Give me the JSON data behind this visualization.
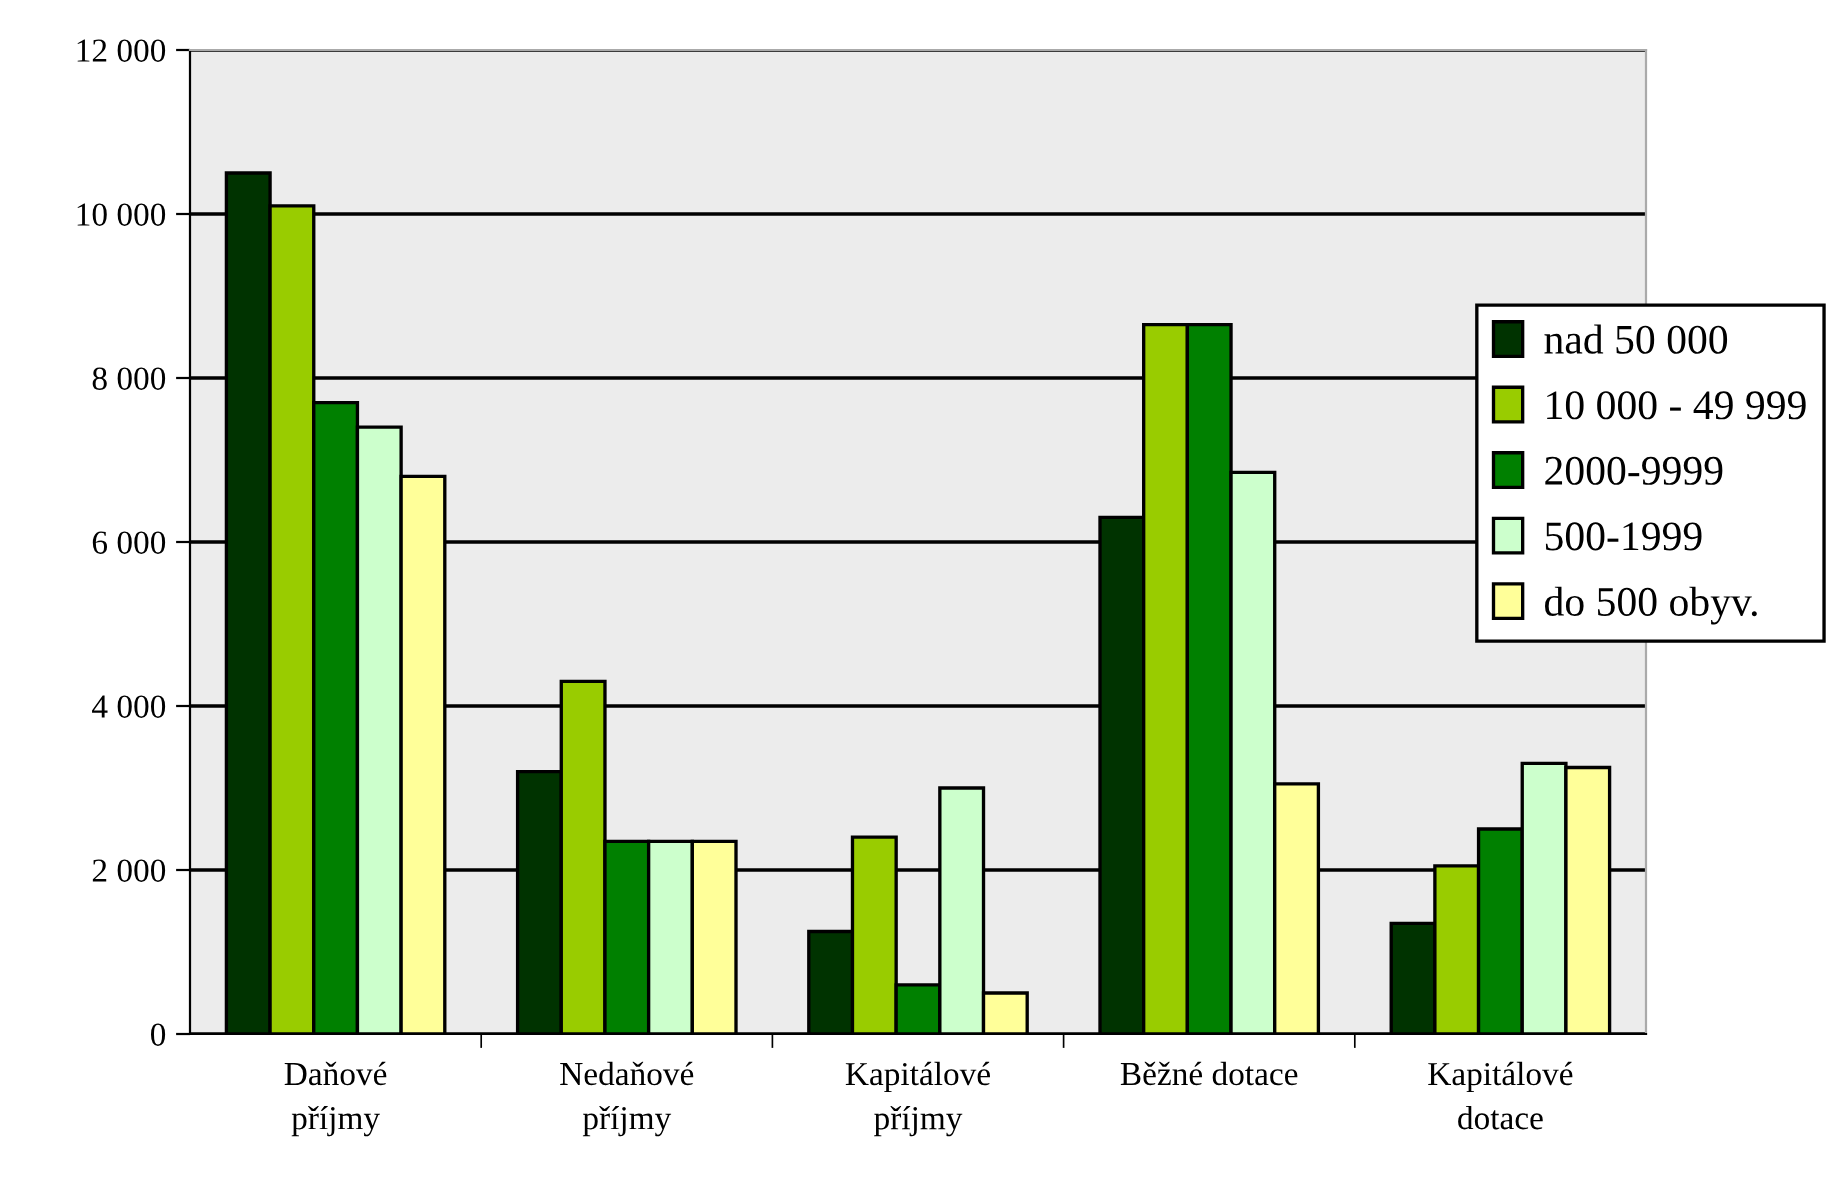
{
  "chart_data": {
    "type": "bar",
    "categories": [
      "Daňové\npříjmy",
      "Nedaňové\npříjmy",
      "Kapitálové\npříjmy",
      "Běžné dotace",
      "Kapitálové\ndotace"
    ],
    "series": [
      {
        "name": "nad 50 000",
        "color": "#003300",
        "values": [
          10500,
          3200,
          1250,
          6300,
          1350
        ]
      },
      {
        "name": "10 000 - 49 999",
        "color": "#99cc00",
        "values": [
          10100,
          4300,
          2400,
          8650,
          2050
        ]
      },
      {
        "name": "2000-9999",
        "color": "#008000",
        "values": [
          7700,
          2350,
          600,
          8650,
          2500
        ]
      },
      {
        "name": "500-1999",
        "color": "#ccffcc",
        "values": [
          7400,
          2350,
          3000,
          6850,
          3300
        ]
      },
      {
        "name": "do 500 obyv.",
        "color": "#ffff99",
        "values": [
          6800,
          2350,
          500,
          3050,
          3250
        ]
      }
    ],
    "ylim": [
      0,
      12000
    ],
    "yticks": [
      {
        "value": 0,
        "label": "0"
      },
      {
        "value": 2000,
        "label": "2 000"
      },
      {
        "value": 4000,
        "label": "4 000"
      },
      {
        "value": 6000,
        "label": "6 000"
      },
      {
        "value": 8000,
        "label": "8 000"
      },
      {
        "value": 10000,
        "label": "10 000"
      },
      {
        "value": 12000,
        "label": "12 000"
      }
    ],
    "grid": "y",
    "legend": "right"
  }
}
